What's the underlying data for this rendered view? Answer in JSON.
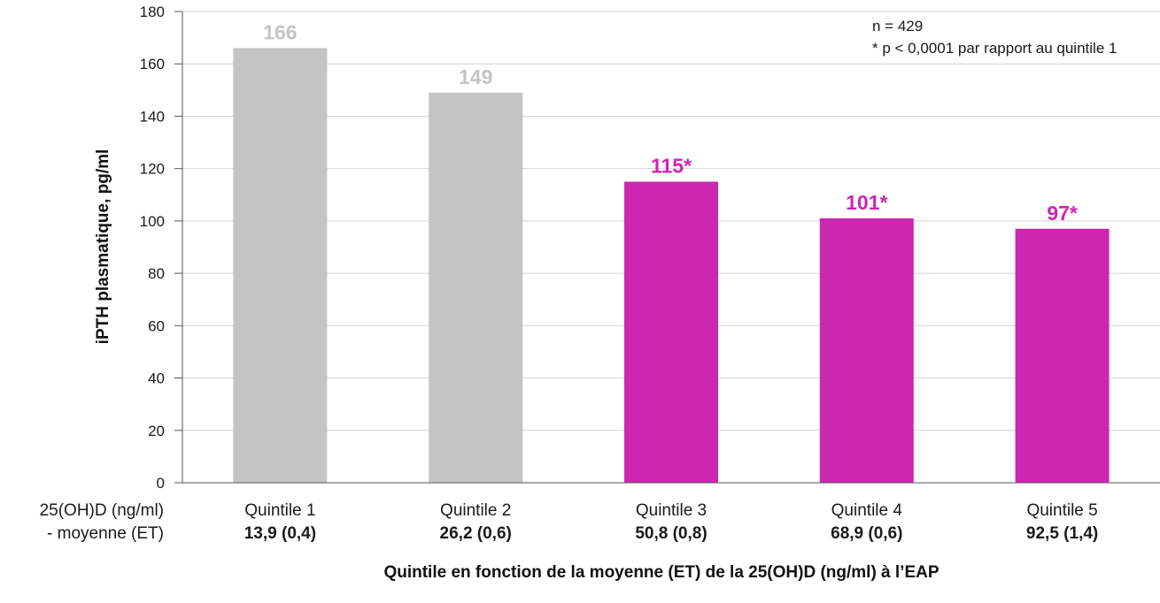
{
  "chart_data": {
    "type": "bar",
    "ylabel": "iPTH plasmatique, pg/ml",
    "xlabel": "Quintile en fonction de la moyenne (ET) de la 25(OH)D (ng/ml) à l’EAP",
    "row_label_line1": "25(OH)D (ng/ml)",
    "row_label_line2": "- moyenne (ET)",
    "ylim": [
      0,
      180
    ],
    "yticks": [
      0,
      20,
      40,
      60,
      80,
      100,
      120,
      140,
      160,
      180
    ],
    "grid": true,
    "categories": [
      "Quintile 1",
      "Quintile 2",
      "Quintile 3",
      "Quintile 4",
      "Quintile 5"
    ],
    "category_means": [
      "13,9 (0,4)",
      "26,2 (0,6)",
      "50,8 (0,8)",
      "68,9 (0,6)",
      "92,5 (1,4)"
    ],
    "values": [
      166,
      149,
      115,
      101,
      97
    ],
    "value_labels": [
      "166",
      "149",
      "115*",
      "101*",
      "97*"
    ],
    "colors": [
      "#c4c4c4",
      "#c4c4c4",
      "#cc27b0",
      "#cc27b0",
      "#cc27b0"
    ],
    "annotations": [
      "n = 429",
      "* p < 0,0001 par rapport au quintile 1"
    ]
  }
}
